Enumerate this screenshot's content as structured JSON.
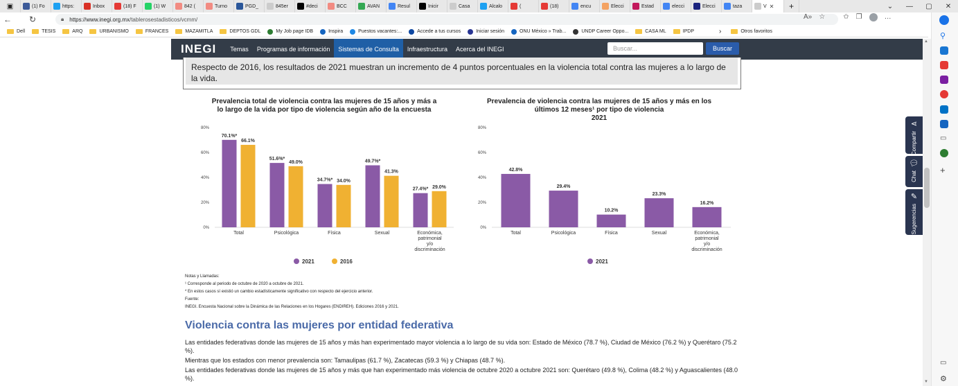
{
  "browser": {
    "tabs": [
      {
        "label": "(1) Fo",
        "color": "#3b5998"
      },
      {
        "label": "https:",
        "color": "#1da1f2"
      },
      {
        "label": "Inbox",
        "color": "#d93025"
      },
      {
        "label": "(18) F",
        "color": "#e53935"
      },
      {
        "label": "(1) W",
        "color": "#25d366"
      },
      {
        "label": "842 (",
        "color": "#f28b82"
      },
      {
        "label": "Turno",
        "color": "#f28b82"
      },
      {
        "label": "PGD_",
        "color": "#2b579a"
      },
      {
        "label": "845er",
        "color": "#cccccc"
      },
      {
        "label": "#deci",
        "color": "#000000"
      },
      {
        "label": "BCC",
        "color": "#f28b82"
      },
      {
        "label": "AVAN",
        "color": "#34a853"
      },
      {
        "label": "Resul",
        "color": "#4285f4"
      },
      {
        "label": "Inicir",
        "color": "#000000"
      },
      {
        "label": "Casa",
        "color": "#cccccc"
      },
      {
        "label": "Alcalo",
        "color": "#1da1f2"
      },
      {
        "label": "(",
        "color": "#e53935"
      },
      {
        "label": "(18)",
        "color": "#e53935"
      },
      {
        "label": "encu",
        "color": "#4285f4"
      },
      {
        "label": "Elecci",
        "color": "#f4a261"
      },
      {
        "label": "Estad",
        "color": "#c2185b"
      },
      {
        "label": "elecci",
        "color": "#4285f4"
      },
      {
        "label": "Elecci",
        "color": "#1a237e"
      },
      {
        "label": "taza",
        "color": "#4285f4"
      },
      {
        "label": "V",
        "color": "#cccccc"
      }
    ],
    "new_tab": "+",
    "window_buttons": [
      "⌄",
      "—",
      "▢",
      "✕"
    ],
    "url_domain": "https://www.inegi.org.mx",
    "url_path": "/tablerosestadisticos/vcmm/",
    "bookmarks": [
      {
        "label": "Dell",
        "type": "folder"
      },
      {
        "label": "TESIS",
        "type": "folder"
      },
      {
        "label": "ARQ",
        "type": "folder"
      },
      {
        "label": "URBANISMO",
        "type": "folder"
      },
      {
        "label": "FRANCES",
        "type": "folder"
      },
      {
        "label": "MAZAMITLA",
        "type": "folder"
      },
      {
        "label": "DEPTOS GDL",
        "type": "folder"
      },
      {
        "label": "My Job page IDB",
        "type": "site"
      },
      {
        "label": "Inspira",
        "type": "site"
      },
      {
        "label": "Puestos vacantes:...",
        "type": "site"
      },
      {
        "label": "Accede a tus cursos",
        "type": "site"
      },
      {
        "label": "Iniciar sesión",
        "type": "site"
      },
      {
        "label": "ONU México » Trab...",
        "type": "site"
      },
      {
        "label": "UNDP Career Oppo...",
        "type": "site"
      },
      {
        "label": "CASA ML",
        "type": "folder"
      },
      {
        "label": "IPDP",
        "type": "folder"
      }
    ],
    "bookmarks_more": "›",
    "other_favorites": "Otros favoritos"
  },
  "site": {
    "logo": "INEGI",
    "nav": [
      "Temas",
      "Programas de información",
      "Sistemas de Consulta",
      "Infraestructura",
      "Acerca del INEGI"
    ],
    "active_nav": 2,
    "search_placeholder": "Buscar...",
    "search_button": "Buscar"
  },
  "side_tabs": [
    "Compartir",
    "Chat",
    "Sugerencias"
  ],
  "highlight_text": "Respecto de 2016, los resultados de 2021 muestran un incremento de 4 puntos porcentuales en la violencia total contra las mujeres a lo largo de la vida.",
  "chart_data": [
    {
      "type": "bar",
      "title": "Prevalencia total de violencia contra las mujeres de 15 años y más a lo largo de la vida por tipo de violencia según año de la encuesta",
      "categories": [
        "Total",
        "Psicológica",
        "Física",
        "Sexual",
        "Económica, patrimonial y/o discriminación"
      ],
      "series": [
        {
          "name": "2021",
          "values": [
            70.1,
            51.6,
            34.7,
            49.7,
            27.4
          ],
          "labels": [
            "70.1%*",
            "51.6%*",
            "34.7%*",
            "49.7%*",
            "27.4%*"
          ],
          "color": "#8a5aa6"
        },
        {
          "name": "2016",
          "values": [
            66.1,
            49.0,
            34.0,
            41.3,
            29.0
          ],
          "labels": [
            "66.1%",
            "49.0%",
            "34.0%",
            "41.3%",
            "29.0%"
          ],
          "color": "#f0b132"
        }
      ],
      "yticks": [
        "0%",
        "20%",
        "40%",
        "60%",
        "80%"
      ],
      "ylim": [
        0,
        80
      ],
      "legend": "bottom"
    },
    {
      "type": "bar",
      "title": "Prevalencia de violencia contra las mujeres de 15 años y más en los últimos 12 meses¹ por tipo de violencia 2021",
      "categories": [
        "Total",
        "Psicológica",
        "Física",
        "Sexual",
        "Económica, patrimonial y/o discriminación"
      ],
      "series": [
        {
          "name": "2021",
          "values": [
            42.8,
            29.4,
            10.2,
            23.3,
            16.2
          ],
          "labels": [
            "42.8%",
            "29.4%",
            "10.2%",
            "23.3%",
            "16.2%"
          ],
          "color": "#8a5aa6"
        }
      ],
      "yticks": [
        "0%",
        "20%",
        "40%",
        "60%",
        "80%"
      ],
      "ylim": [
        0,
        80
      ],
      "legend": "bottom"
    }
  ],
  "chart1_title_lines": [
    "Prevalencia total de violencia contra las mujeres de 15 años y más a",
    "lo largo de la vida por tipo de violencia según año de la encuesta"
  ],
  "chart2_title_lines": [
    "Prevalencia de violencia contra las mujeres de 15 años y más en los",
    "últimos 12 meses¹ por tipo de violencia",
    "2021"
  ],
  "notes": [
    "Notas y Llamadas:",
    "¹ Corresponde al periodo de octubre de 2020 a octubre de 2021.",
    "* En estos casos sí existió un cambio estadísticamente significativo con respecto del ejercicio anterior.",
    "Fuente:",
    "INEGI. Encuesta Nacional sobre la Dinámica de las Relaciones en los Hogares (ENDIREH). Ediciones 2016 y 2021."
  ],
  "section_title": "Violencia contra las mujeres por entidad federativa",
  "paragraphs": [
    "Las entidades federativas donde las mujeres de 15 años y más han experimentado mayor violencia a lo largo de su vida son: Estado de México (78.7 %), Ciudad de México (76.2 %) y Querétaro (75.2 %).",
    "Mientras que los estados con menor prevalencia son: Tamaulipas (61.7 %), Zacatecas (59.3 %) y Chiapas (48.7 %).",
    "Las entidades federativas donde las mujeres de 15 años y más que han experimentado más violencia de octubre 2020 a octubre 2021 son: Querétaro (49.8 %), Colima (48.2 %) y Aguascalientes (48.0 %)."
  ]
}
